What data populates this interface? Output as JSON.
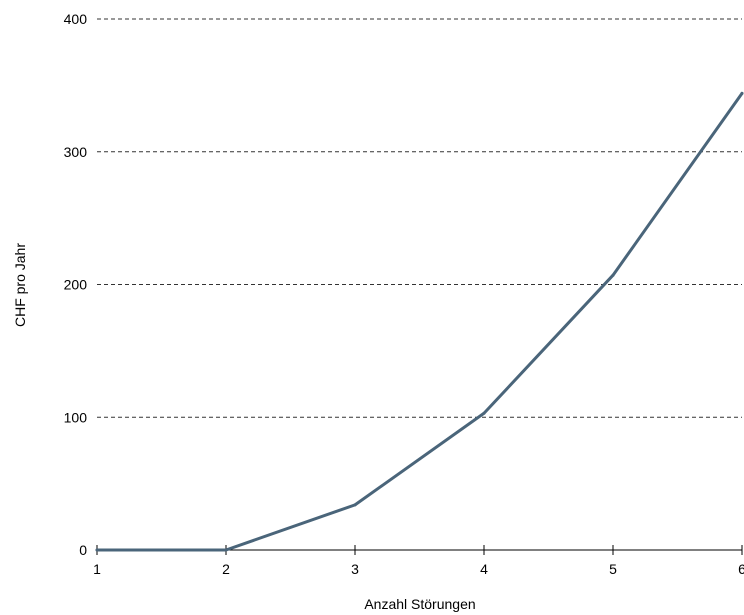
{
  "chart_data": {
    "type": "line",
    "title": "",
    "xlabel": "Anzahl Störungen",
    "ylabel": "CHF pro Jahr",
    "x": [
      1,
      2,
      3,
      4,
      5,
      6
    ],
    "xticks": [
      "1",
      "2",
      "3",
      "4",
      "5",
      "6"
    ],
    "yticks": [
      "0",
      "100",
      "200",
      "300",
      "400"
    ],
    "xlim": [
      1,
      6
    ],
    "ylim": [
      0,
      400
    ],
    "grid": "horizontal dashed",
    "series": [
      {
        "values": [
          0,
          0,
          34,
          103,
          207,
          344
        ],
        "color": "#4a657a"
      }
    ]
  },
  "colors": {
    "grid": "#333333",
    "axis": "#000000",
    "line": "#4a657a"
  }
}
